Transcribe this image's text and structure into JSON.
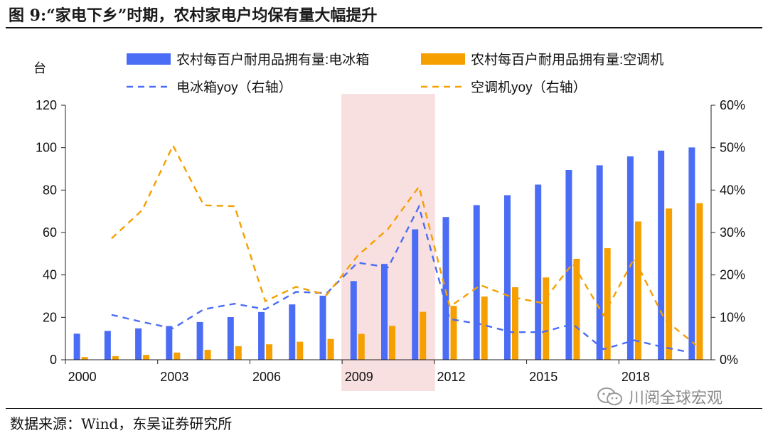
{
  "figure": {
    "title": "图 9:“家电下乡”时期，农村家电户均保有量大幅提升",
    "source": "数据来源：Wind，东吴证券研究所",
    "watermark": "川阅全球宏观",
    "watermark_icon": "wechat-icon"
  },
  "chart_data": {
    "type": "bar",
    "x": [
      2000,
      2001,
      2002,
      2003,
      2004,
      2005,
      2006,
      2007,
      2008,
      2009,
      2010,
      2011,
      2012,
      2013,
      2014,
      2015,
      2016,
      2017,
      2018,
      2019,
      2020
    ],
    "x_tick_labels": [
      "2000",
      "2003",
      "2006",
      "2009",
      "2012",
      "2015",
      "2018"
    ],
    "x_tick_values": [
      2000,
      2003,
      2006,
      2009,
      2012,
      2015,
      2018
    ],
    "ylabel": "台",
    "ylim": [
      0,
      120
    ],
    "y_ticks": [
      0,
      20,
      40,
      60,
      80,
      100,
      120
    ],
    "y2lim": [
      0,
      60
    ],
    "y2_ticks": [
      "0%",
      "10%",
      "20%",
      "30%",
      "40%",
      "50%",
      "60%"
    ],
    "legend_position": "top",
    "highlight": {
      "from": 2009,
      "to": 2011,
      "color": "#f9e0e0"
    },
    "series": [
      {
        "name": "农村每百户耐用品拥有量:电冰箱",
        "kind": "bar",
        "axis": "left",
        "color": "#4b6cf5",
        "values": [
          12.3,
          13.6,
          14.8,
          15.9,
          17.8,
          20.1,
          22.5,
          26.1,
          30.2,
          37.1,
          45.2,
          61.5,
          67.3,
          72.9,
          77.6,
          82.6,
          89.5,
          91.7,
          95.9,
          98.6,
          100.1
        ]
      },
      {
        "name": "农村每百户耐用品拥有量:空调机",
        "kind": "bar",
        "axis": "right_none",
        "color": "#f5a000",
        "values": [
          1.3,
          1.7,
          2.3,
          3.4,
          4.7,
          6.4,
          7.3,
          8.5,
          9.8,
          12.2,
          16.0,
          22.6,
          25.4,
          29.8,
          34.2,
          38.8,
          47.6,
          52.6,
          65.2,
          71.3,
          73.8
        ]
      },
      {
        "name": "电冰箱yoy（右轴）",
        "kind": "line",
        "axis": "right",
        "color": "#4b6cf5",
        "dashed": true,
        "values": [
          null,
          10.6,
          8.9,
          7.4,
          11.9,
          13.2,
          11.9,
          16.0,
          15.7,
          22.9,
          21.8,
          36.1,
          9.6,
          8.4,
          6.5,
          6.5,
          8.4,
          2.5,
          4.6,
          2.9,
          1.5
        ]
      },
      {
        "name": "空调机yoy（右轴）",
        "kind": "line",
        "axis": "right",
        "color": "#f5a000",
        "dashed": true,
        "values": [
          null,
          28.6,
          35.3,
          50.5,
          36.4,
          36.2,
          13.8,
          17.2,
          15.3,
          24.5,
          30.9,
          40.8,
          12.5,
          17.6,
          14.8,
          13.4,
          22.7,
          10.5,
          23.9,
          9.4,
          3.5
        ]
      }
    ]
  }
}
